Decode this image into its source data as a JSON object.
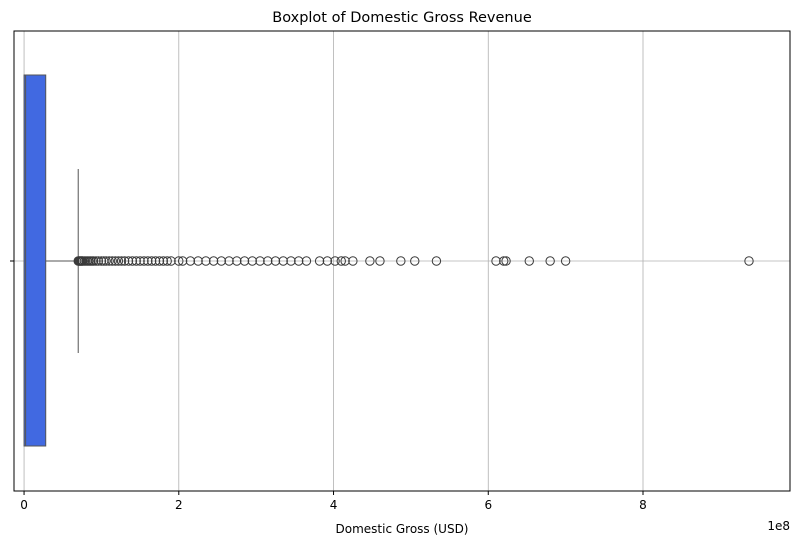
{
  "chart_data": {
    "type": "boxplot",
    "orientation": "horizontal",
    "title": "Boxplot of Domestic Gross Revenue",
    "xlabel": "Domestic Gross (USD)",
    "ylabel": "",
    "x_offset_label": "1e8",
    "xlim": [
      -0.13,
      9.9
    ],
    "x_ticks": [
      0,
      2,
      4,
      6,
      8
    ],
    "x_tick_labels": [
      "0",
      "2",
      "4",
      "6",
      "8"
    ],
    "grid": true,
    "box_color": "#4169e1",
    "edge_color": "#555555",
    "box": {
      "min": 0.0,
      "q1": 0.0,
      "median": 0.02,
      "q3": 0.28,
      "whisker_high": 0.7
    },
    "outliers": [
      0.7,
      0.71,
      0.72,
      0.73,
      0.74,
      0.75,
      0.76,
      0.78,
      0.8,
      0.82,
      0.84,
      0.86,
      0.88,
      0.9,
      0.93,
      0.96,
      1.0,
      1.03,
      1.06,
      1.1,
      1.14,
      1.18,
      1.22,
      1.26,
      1.3,
      1.35,
      1.4,
      1.45,
      1.5,
      1.55,
      1.6,
      1.65,
      1.7,
      1.75,
      1.8,
      1.85,
      1.9,
      2.0,
      2.05,
      2.15,
      2.25,
      2.35,
      2.45,
      2.55,
      2.65,
      2.75,
      2.85,
      2.95,
      3.05,
      3.15,
      3.25,
      3.35,
      3.45,
      3.55,
      3.65,
      3.82,
      3.92,
      4.02,
      4.1,
      4.15,
      4.25,
      4.47,
      4.6,
      4.87,
      5.05,
      5.33,
      6.1,
      6.2,
      6.23,
      6.53,
      6.8,
      7.0,
      9.37
    ]
  }
}
